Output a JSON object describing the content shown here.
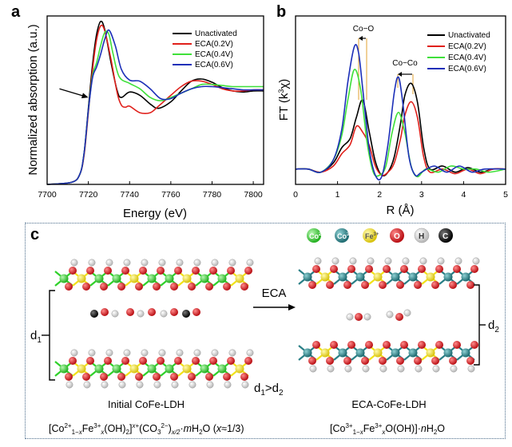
{
  "panel_letters": {
    "a": "a",
    "b": "b",
    "c": "c"
  },
  "colors": {
    "unactivated": "#000000",
    "eca02": "#e0201b",
    "eca04": "#3fe03a",
    "eca06": "#1c2fb8",
    "annot_line": "#e0a030",
    "co2": "#2fd12a",
    "co3": "#2a7f86",
    "fe3": "#f1e21b",
    "o": "#d8141a",
    "h": "#f4f4f4",
    "c": "#0a0a0a",
    "frame": "#4a6b8a"
  },
  "chart_data": [
    {
      "type": "line",
      "panel": "a",
      "xlabel": "Energy (eV)",
      "ylabel": "Normalized absorption (a.u.)",
      "xlim": [
        7700,
        7805
      ],
      "ylim": [
        0,
        1.55
      ],
      "xticks": [
        7700,
        7720,
        7740,
        7760,
        7780,
        7800
      ],
      "grid": false,
      "legend_position": "top-right",
      "series": [
        {
          "name": "Unactivated",
          "x": [
            7700,
            7712,
            7716,
            7718,
            7720,
            7722,
            7724,
            7726,
            7728,
            7731,
            7734,
            7736,
            7740,
            7745,
            7750,
            7754,
            7760,
            7765,
            7770,
            7775,
            7780,
            7785,
            7790,
            7795,
            7800,
            7805
          ],
          "y": [
            0.0,
            0.02,
            0.1,
            0.3,
            0.7,
            1.1,
            1.38,
            1.5,
            1.42,
            1.12,
            0.86,
            0.8,
            0.85,
            0.82,
            0.74,
            0.7,
            0.76,
            0.86,
            0.95,
            0.97,
            0.94,
            0.89,
            0.86,
            0.85,
            0.86,
            0.86
          ]
        },
        {
          "name": "ECA(0.2V)",
          "x": [
            7700,
            7712,
            7716,
            7718,
            7720,
            7722,
            7724,
            7726,
            7728,
            7731,
            7734,
            7736,
            7738,
            7740,
            7745,
            7750,
            7754,
            7760,
            7765,
            7770,
            7775,
            7780,
            7785,
            7790,
            7795,
            7800,
            7805
          ],
          "y": [
            0.0,
            0.02,
            0.1,
            0.28,
            0.66,
            1.05,
            1.33,
            1.46,
            1.41,
            1.15,
            0.84,
            0.73,
            0.71,
            0.72,
            0.66,
            0.66,
            0.72,
            0.82,
            0.9,
            0.95,
            0.95,
            0.92,
            0.88,
            0.86,
            0.86,
            0.87,
            0.87
          ]
        },
        {
          "name": "ECA(0.4V)",
          "x": [
            7700,
            7712,
            7716,
            7718,
            7720,
            7722,
            7724,
            7726,
            7728,
            7730,
            7732,
            7735,
            7740,
            7745,
            7750,
            7755,
            7760,
            7765,
            7770,
            7775,
            7780,
            7785,
            7790,
            7795,
            7800,
            7805
          ],
          "y": [
            0.0,
            0.02,
            0.1,
            0.3,
            0.68,
            1.0,
            1.12,
            1.28,
            1.4,
            1.38,
            1.2,
            0.99,
            0.93,
            0.88,
            0.8,
            0.77,
            0.8,
            0.84,
            0.88,
            0.92,
            0.92,
            0.91,
            0.9,
            0.9,
            0.9,
            0.9
          ]
        },
        {
          "name": "ECA(0.6V)",
          "x": [
            7700,
            7712,
            7716,
            7718,
            7720,
            7722,
            7724,
            7726,
            7728,
            7730,
            7733,
            7736,
            7740,
            7745,
            7750,
            7755,
            7760,
            7765,
            7770,
            7775,
            7780,
            7785,
            7790,
            7795,
            7800,
            7805
          ],
          "y": [
            0.0,
            0.02,
            0.1,
            0.3,
            0.68,
            0.98,
            1.08,
            1.2,
            1.34,
            1.42,
            1.28,
            1.06,
            0.96,
            0.95,
            0.88,
            0.79,
            0.79,
            0.84,
            0.88,
            0.9,
            0.9,
            0.89,
            0.88,
            0.87,
            0.87,
            0.87
          ]
        }
      ],
      "annotations": [
        {
          "type": "arrow",
          "from": [
            7706,
            0.88
          ],
          "to": [
            7720,
            0.8
          ]
        }
      ]
    },
    {
      "type": "line",
      "panel": "b",
      "xlabel": "R (Å)",
      "ylabel": "FT (k³χ)",
      "xlim": [
        0,
        5
      ],
      "ylim": [
        0,
        1.1
      ],
      "xticks": [
        0,
        1,
        2,
        3,
        4,
        5
      ],
      "grid": false,
      "legend_position": "top-right",
      "series": [
        {
          "name": "Unactivated",
          "x": [
            0,
            0.3,
            0.6,
            0.9,
            1.1,
            1.3,
            1.45,
            1.6,
            1.75,
            1.9,
            2.05,
            2.2,
            2.35,
            2.5,
            2.6,
            2.75,
            2.9,
            3.05,
            3.2,
            3.5,
            3.8,
            4.1,
            4.4,
            4.7,
            5.0
          ],
          "y": [
            0.1,
            0.1,
            0.08,
            0.14,
            0.24,
            0.3,
            0.44,
            0.55,
            0.35,
            0.15,
            0.06,
            0.08,
            0.18,
            0.4,
            0.58,
            0.66,
            0.54,
            0.24,
            0.1,
            0.12,
            0.08,
            0.11,
            0.08,
            0.1,
            0.1
          ]
        },
        {
          "name": "ECA(0.2V)",
          "x": [
            0,
            0.3,
            0.6,
            0.9,
            1.1,
            1.3,
            1.45,
            1.6,
            1.75,
            1.9,
            2.05,
            2.2,
            2.35,
            2.5,
            2.6,
            2.75,
            2.9,
            3.05,
            3.2,
            3.5,
            3.8,
            4.1,
            4.4,
            4.7,
            5.0
          ],
          "y": [
            0.1,
            0.1,
            0.08,
            0.12,
            0.2,
            0.26,
            0.38,
            0.34,
            0.26,
            0.12,
            0.06,
            0.08,
            0.14,
            0.3,
            0.45,
            0.54,
            0.44,
            0.18,
            0.08,
            0.1,
            0.07,
            0.1,
            0.07,
            0.1,
            0.1
          ]
        },
        {
          "name": "ECA(0.4V)",
          "x": [
            0,
            0.3,
            0.6,
            0.9,
            1.1,
            1.25,
            1.4,
            1.55,
            1.7,
            1.85,
            2.0,
            2.15,
            2.3,
            2.45,
            2.6,
            2.75,
            2.9,
            3.1,
            3.4,
            3.7,
            4.0,
            4.3,
            4.6,
            5.0
          ],
          "y": [
            0.1,
            0.1,
            0.08,
            0.16,
            0.32,
            0.56,
            0.75,
            0.62,
            0.28,
            0.08,
            0.06,
            0.12,
            0.34,
            0.47,
            0.34,
            0.12,
            0.05,
            0.1,
            0.08,
            0.12,
            0.1,
            0.1,
            0.08,
            0.1
          ]
        },
        {
          "name": "ECA(0.6V)",
          "x": [
            0,
            0.3,
            0.6,
            0.9,
            1.1,
            1.25,
            1.4,
            1.5,
            1.6,
            1.75,
            1.9,
            2.05,
            2.2,
            2.35,
            2.45,
            2.55,
            2.7,
            2.85,
            3.0,
            3.3,
            3.6,
            3.9,
            4.2,
            4.5,
            5.0
          ],
          "y": [
            0.1,
            0.1,
            0.08,
            0.16,
            0.36,
            0.68,
            0.9,
            0.86,
            0.62,
            0.24,
            0.06,
            0.05,
            0.26,
            0.6,
            0.7,
            0.54,
            0.18,
            0.06,
            0.08,
            0.12,
            0.08,
            0.12,
            0.08,
            0.1,
            0.1
          ]
        }
      ],
      "annotations": [
        {
          "type": "bracket",
          "label": "Co−O",
          "x_from": 1.6,
          "x_to": 1.45
        },
        {
          "type": "bracket",
          "label": "Co−Co",
          "x_from": 2.75,
          "x_to": 2.45
        }
      ]
    }
  ],
  "panel_c": {
    "legend": [
      {
        "symbol": "Co",
        "charge": "2+",
        "color_key": "co2"
      },
      {
        "symbol": "Co",
        "charge": "3+",
        "color_key": "co3"
      },
      {
        "symbol": "Fe",
        "charge": "3+",
        "color_key": "fe3"
      },
      {
        "symbol": "O",
        "charge": "",
        "color_key": "o"
      },
      {
        "symbol": "H",
        "charge": "",
        "color_key": "h"
      },
      {
        "symbol": "C",
        "charge": "",
        "color_key": "c"
      }
    ],
    "arrow_label": "ECA",
    "d1_label": "d",
    "d1_sub": "1",
    "d2_label": "d",
    "d2_sub": "2",
    "comparison": "d1>d2",
    "left_title": "Initial  CoFe-LDH",
    "right_title": "ECA-CoFe-LDH",
    "left_formula": "[Co2+1−xFe3+x(OH)2]x+(CO32−)x/2·mH2O (x≈1/3)",
    "right_formula": "[Co3+1−xFe3+xO(OH)]·nH2O"
  }
}
